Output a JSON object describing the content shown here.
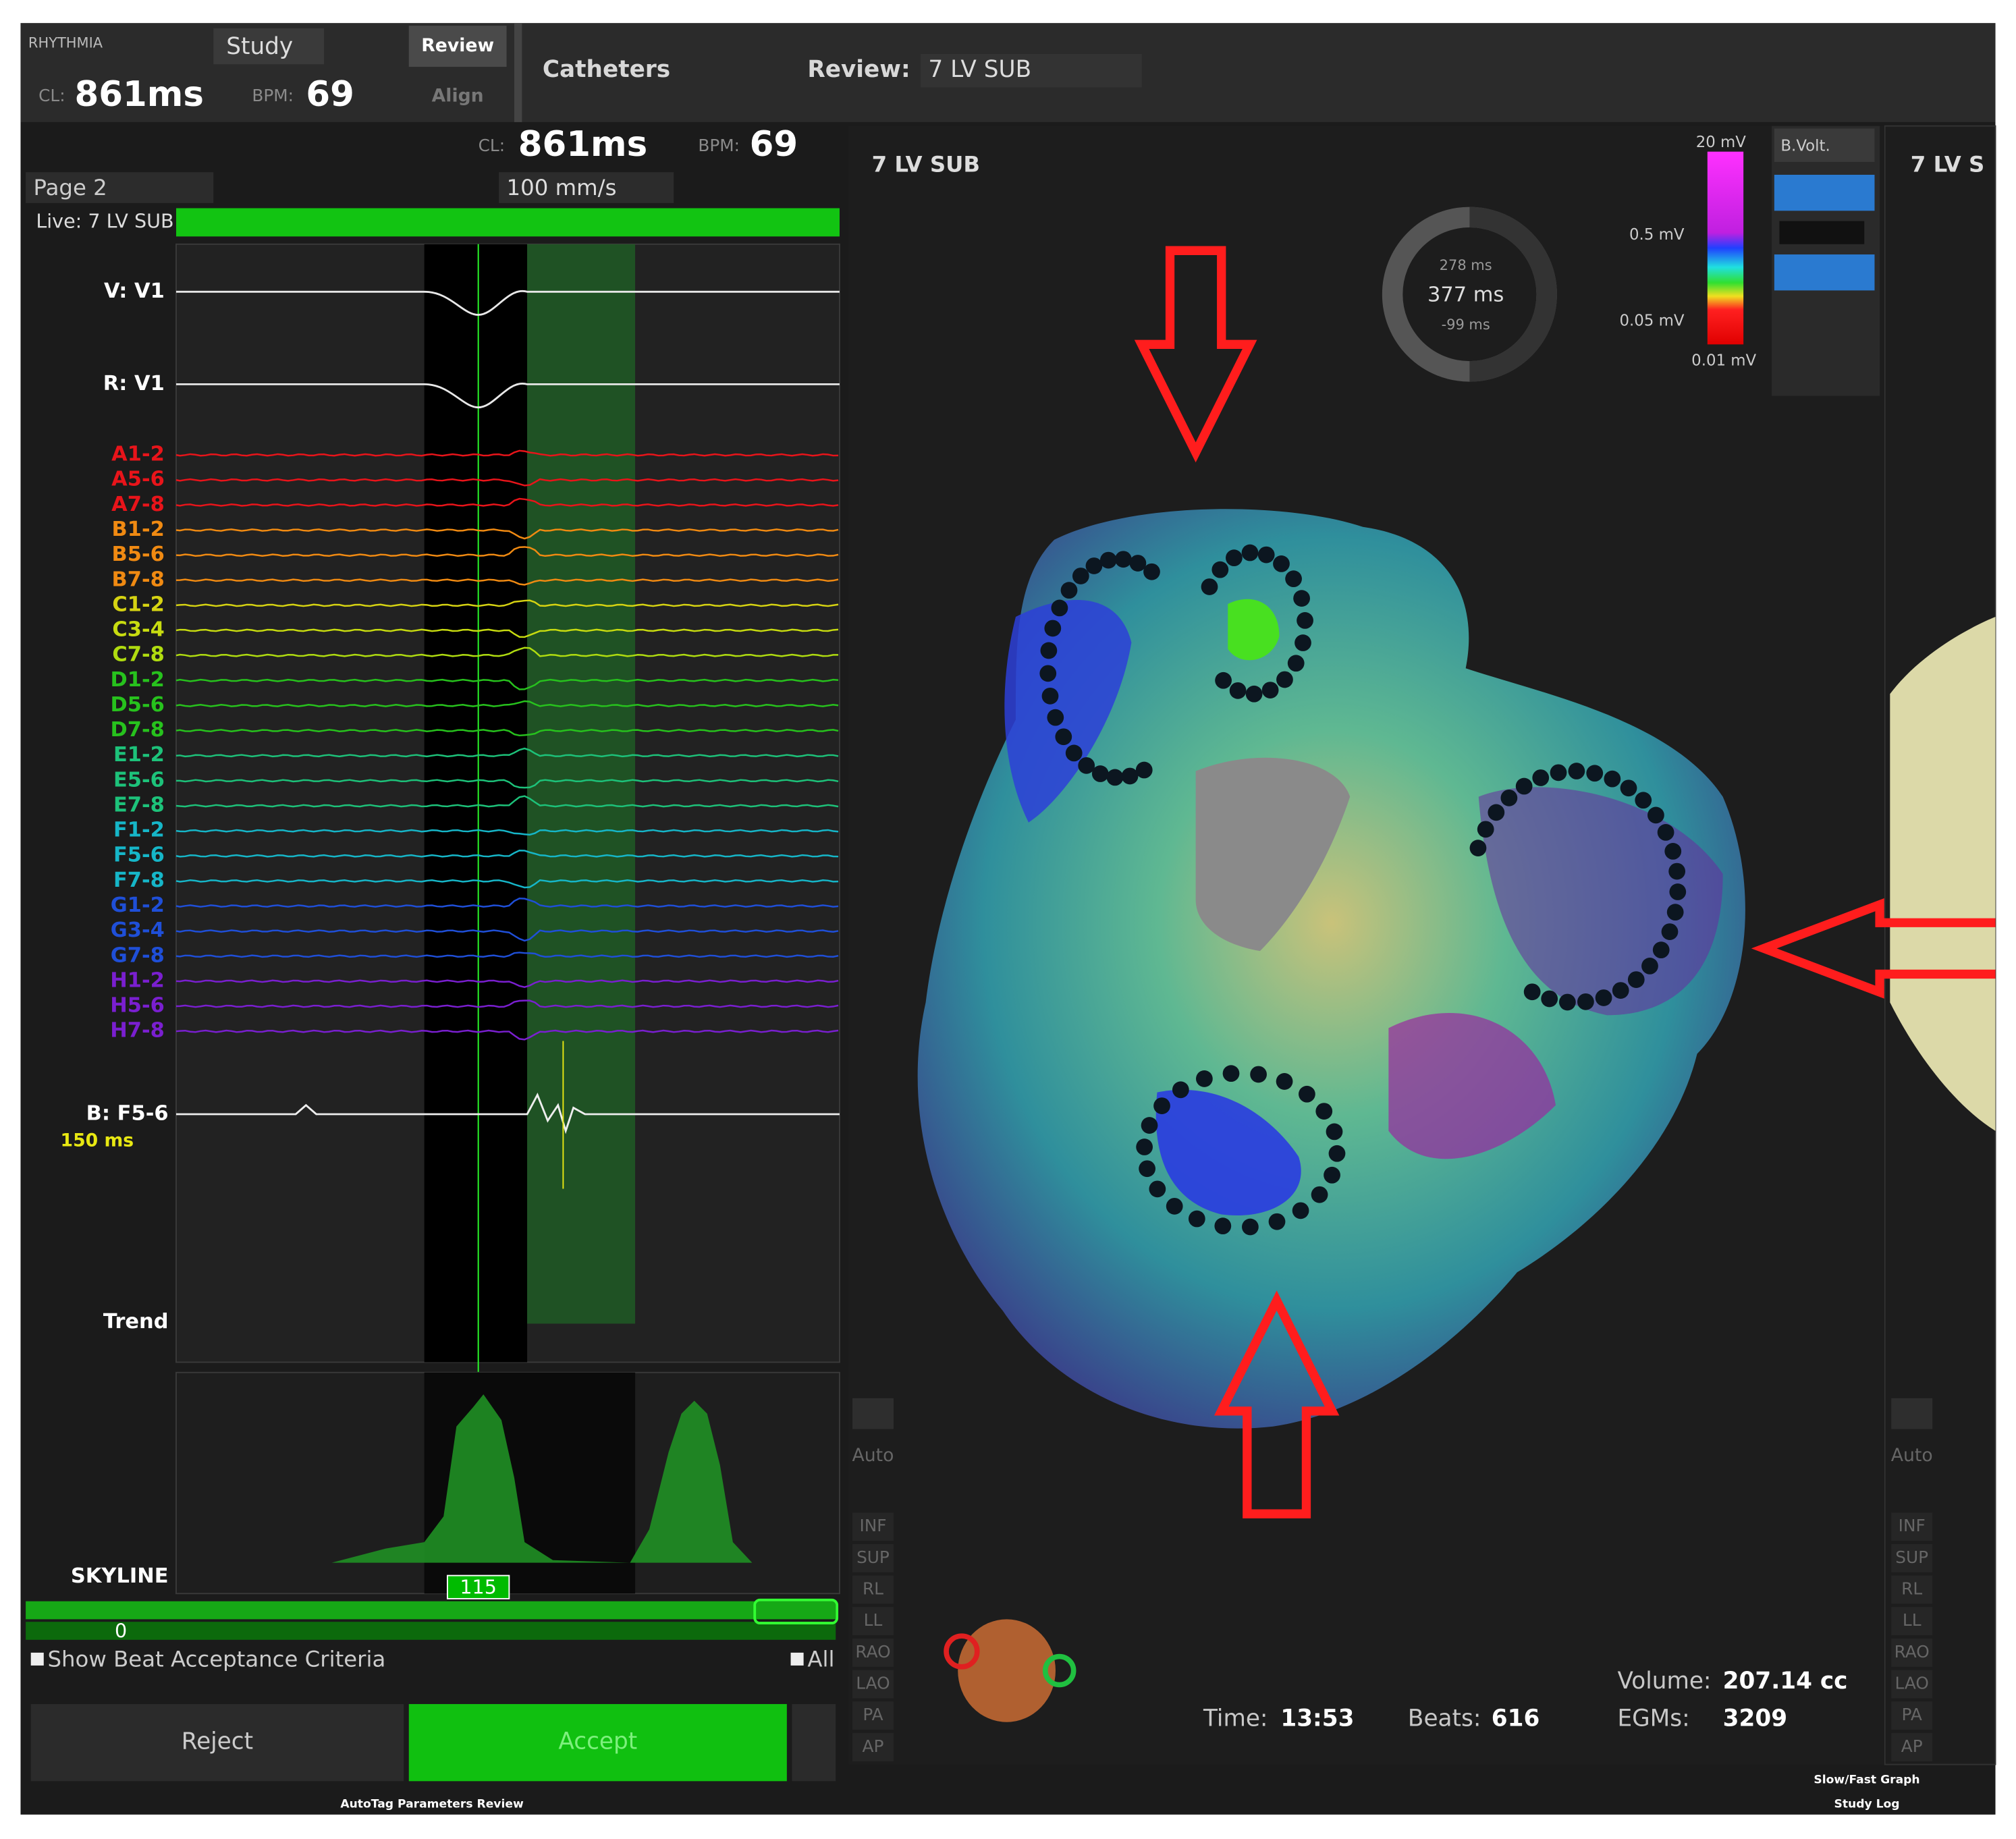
{
  "header": {
    "logo": "RHYTHMIA",
    "study": "Study",
    "review_tab": "Review",
    "align_tab": "Align",
    "catheters": "Catheters",
    "review_label": "Review:",
    "review_value": "7 LV SUB",
    "cl_label": "CL:",
    "cl": "861ms",
    "bpm_label": "BPM:",
    "bpm": "69"
  },
  "ecg_panel": {
    "cl_label": "CL:",
    "cl": "861ms",
    "bpm_label": "BPM:",
    "bpm": "69",
    "page": "Page 2",
    "speed": "100 mm/s",
    "live": "Live: 7 LV SUB",
    "surface_channels": [
      {
        "label": "V: V1"
      },
      {
        "label": "R: V1"
      }
    ],
    "channels": [
      {
        "label": "A1-2",
        "color": "#e8141a"
      },
      {
        "label": "A5-6",
        "color": "#e8141a"
      },
      {
        "label": "A7-8",
        "color": "#e8141a"
      },
      {
        "label": "B1-2",
        "color": "#f08a12"
      },
      {
        "label": "B5-6",
        "color": "#f08a12"
      },
      {
        "label": "B7-8",
        "color": "#f08a12"
      },
      {
        "label": "C1-2",
        "color": "#d6d312"
      },
      {
        "label": "C3-4",
        "color": "#c8dc10"
      },
      {
        "label": "C7-8",
        "color": "#b0dc10"
      },
      {
        "label": "D1-2",
        "color": "#27c21d"
      },
      {
        "label": "D5-6",
        "color": "#27c21d"
      },
      {
        "label": "D7-8",
        "color": "#27c21d"
      },
      {
        "label": "E1-2",
        "color": "#1dc27a"
      },
      {
        "label": "E5-6",
        "color": "#1dc27a"
      },
      {
        "label": "E7-8",
        "color": "#1dc27a"
      },
      {
        "label": "F1-2",
        "color": "#16b6c8"
      },
      {
        "label": "F5-6",
        "color": "#16b6c8"
      },
      {
        "label": "F7-8",
        "color": "#16b6c8"
      },
      {
        "label": "G1-2",
        "color": "#1f4fd8"
      },
      {
        "label": "G3-4",
        "color": "#1f4fd8"
      },
      {
        "label": "G7-8",
        "color": "#1f4fd8"
      },
      {
        "label": "H1-2",
        "color": "#7a1fd0"
      },
      {
        "label": "H5-6",
        "color": "#7a1fd0"
      },
      {
        "label": "H7-8",
        "color": "#7a1fd0"
      }
    ],
    "bipolar": "B: F5-6",
    "bipolar_window": "150 ms",
    "trend": "Trend",
    "skyline": "SKYLINE",
    "skyline_value": "115",
    "counter": "0",
    "show_criteria": "Show Beat Acceptance Criteria",
    "all": "All",
    "reject": "Reject",
    "accept": "Accept",
    "footer": "AutoTag Parameters Review"
  },
  "map_panel": {
    "title": "7 LV SUB",
    "right_title": "7 LV S",
    "ring_top": "278 ms",
    "ring_center": "377 ms",
    "ring_bottom": "-99 ms",
    "scale_labels": [
      "20 mV",
      "0.5 mV",
      "0.05 mV",
      "0.01 mV"
    ],
    "map_type": "B.Volt.",
    "auto": "Auto",
    "views": [
      "INF",
      "SUP",
      "RL",
      "LL",
      "RAO",
      "LAO",
      "PA",
      "AP"
    ],
    "time_label": "Time:",
    "time": "13:53",
    "beats_label": "Beats:",
    "beats": "616",
    "volume_label": "Volume:",
    "volume": "207.14 cc",
    "egms_label": "EGMs:",
    "egms": "3209",
    "slow_fast": "Slow/Fast Graph",
    "study_log": "Study Log"
  }
}
